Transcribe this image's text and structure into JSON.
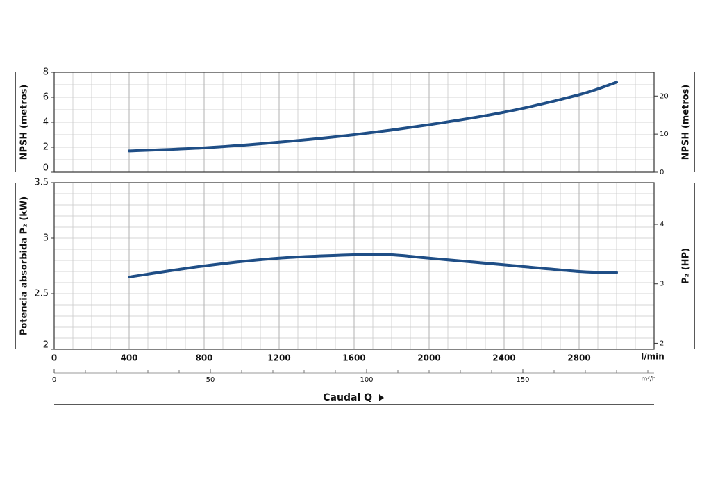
{
  "chart_data": [
    {
      "type": "line",
      "ylabel": "NPSH (metros)",
      "y2label": "NPSH (metros)",
      "x": [
        400,
        800,
        1200,
        1600,
        2000,
        2400,
        2800,
        3000
      ],
      "series": [
        {
          "color": "#1f4e86",
          "values": [
            1.7,
            1.95,
            2.4,
            3.0,
            3.8,
            4.8,
            6.2,
            7.2
          ]
        }
      ],
      "xlim": [
        0,
        3200
      ],
      "ylim": [
        0,
        8
      ],
      "yticks": [
        0,
        2,
        4,
        6,
        8
      ],
      "y2lim": [
        0,
        26.25
      ],
      "y2ticks": [
        0,
        10,
        20
      ],
      "grid": true
    },
    {
      "type": "line",
      "ylabel": "Potencia absorbida P₂ (kW)",
      "y2label": "P₂ (HP)",
      "x": [
        400,
        800,
        1200,
        1600,
        1800,
        2000,
        2400,
        2800,
        3000
      ],
      "series": [
        {
          "color": "#1f4e86",
          "values": [
            2.65,
            2.75,
            2.82,
            2.85,
            2.85,
            2.82,
            2.76,
            2.7,
            2.69
          ]
        }
      ],
      "xlim": [
        0,
        3200
      ],
      "xticks": [
        0,
        400,
        800,
        1200,
        1600,
        2000,
        2400,
        2800
      ],
      "xunit": "l/min",
      "x2lim": [
        0,
        192
      ],
      "x2ticks": [
        0,
        50,
        100,
        150
      ],
      "x2unit": "m³/h",
      "xlabel": "Caudal Q",
      "ylim": [
        2,
        3.5
      ],
      "yticks": [
        2,
        2.5,
        3,
        3.5
      ],
      "y2lim": [
        1.9,
        4.7
      ],
      "y2ticks": [
        2,
        3,
        4
      ],
      "grid": true
    }
  ]
}
